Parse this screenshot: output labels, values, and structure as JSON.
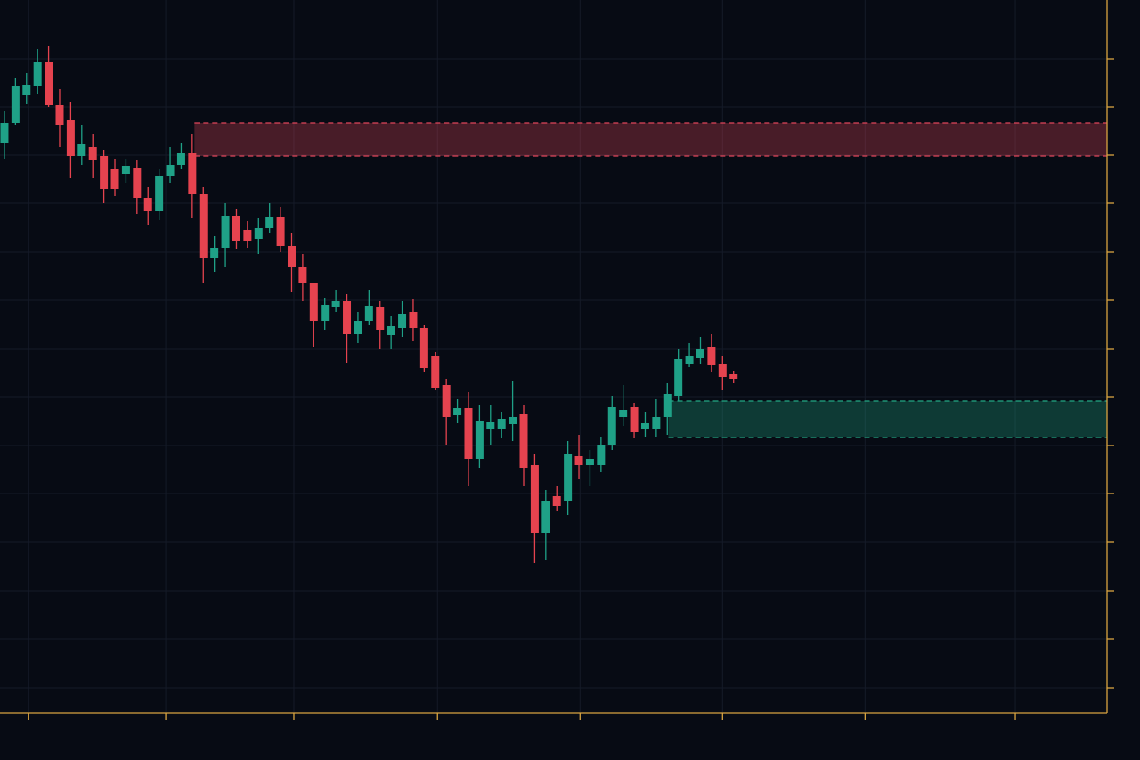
{
  "chart_data": {
    "type": "candlestick",
    "x": [
      0,
      1,
      2,
      3,
      4,
      5,
      6,
      7,
      8,
      9,
      10,
      11,
      12,
      13,
      14,
      15,
      16,
      17,
      18,
      19,
      20,
      21,
      22,
      23,
      24,
      25,
      26,
      27,
      28,
      29,
      30,
      31,
      32,
      33,
      34,
      35,
      36,
      37,
      38,
      39,
      40,
      41,
      42,
      43,
      44,
      45,
      46,
      47,
      48,
      49,
      50,
      51,
      52,
      53,
      54,
      55,
      56,
      57,
      58,
      59,
      60,
      61,
      62,
      63,
      64,
      65,
      66
    ],
    "open": [
      640,
      662,
      693,
      703,
      730,
      682,
      665,
      625,
      635,
      625,
      610,
      605,
      612,
      578,
      563,
      602,
      615,
      628,
      582,
      510,
      522,
      558,
      542,
      532,
      544,
      556,
      524,
      500,
      482,
      440,
      455,
      462,
      425,
      440,
      455,
      424,
      432,
      450,
      432,
      400,
      368,
      334,
      342,
      285,
      318,
      318,
      324,
      335,
      278,
      202,
      243,
      238,
      288,
      278,
      278,
      300,
      332,
      343,
      318,
      318,
      332,
      355,
      392,
      398,
      410,
      392,
      380
    ],
    "high": [
      675,
      712,
      718,
      745,
      748,
      700,
      685,
      660,
      650,
      632,
      622,
      622,
      620,
      590,
      610,
      635,
      640,
      650,
      590,
      535,
      572,
      565,
      552,
      555,
      572,
      568,
      538,
      515,
      482,
      465,
      475,
      470,
      450,
      474,
      462,
      445,
      462,
      464,
      435,
      405,
      375,
      352,
      360,
      345,
      345,
      338,
      372,
      345,
      290,
      250,
      255,
      305,
      312,
      295,
      310,
      355,
      368,
      348,
      338,
      352,
      370,
      408,
      415,
      422,
      425,
      400,
      384
    ],
    "low": [
      622,
      660,
      683,
      695,
      680,
      635,
      600,
      615,
      600,
      572,
      580,
      595,
      560,
      548,
      553,
      595,
      610,
      555,
      482,
      495,
      500,
      520,
      522,
      515,
      538,
      517,
      472,
      462,
      410,
      430,
      450,
      393,
      415,
      435,
      408,
      408,
      422,
      417,
      382,
      362,
      300,
      325,
      255,
      275,
      300,
      308,
      305,
      255,
      168,
      172,
      227,
      222,
      262,
      255,
      270,
      295,
      322,
      308,
      310,
      310,
      312,
      350,
      388,
      392,
      382,
      362,
      370
    ],
    "close": [
      662,
      703,
      705,
      730,
      682,
      660,
      625,
      638,
      620,
      588,
      588,
      614,
      578,
      563,
      602,
      615,
      628,
      582,
      510,
      522,
      558,
      530,
      530,
      544,
      556,
      524,
      500,
      482,
      440,
      458,
      462,
      425,
      440,
      457,
      430,
      434,
      448,
      432,
      387,
      365,
      332,
      342,
      285,
      328,
      326,
      330,
      332,
      275,
      202,
      238,
      232,
      290,
      278,
      285,
      300,
      343,
      340,
      315,
      325,
      332,
      358,
      397,
      400,
      408,
      390,
      377,
      375
    ],
    "up_color": "#1fa187",
    "down_color": "#e5434f",
    "xlim": [
      -0.4,
      99.8
    ],
    "xticks": [
      2.2,
      14.6,
      26.2,
      39.2,
      52.1,
      65,
      77.9,
      91.5
    ],
    "ylim": [
      0,
      800
    ],
    "yticks": [
      28,
      83,
      137,
      192,
      246,
      300,
      354,
      408,
      463,
      517,
      572,
      626,
      680,
      734
    ],
    "grid": true,
    "axis_color": "#d9a441",
    "zones": [
      {
        "ylim": [
          625,
          662
        ],
        "x_start": 17.2,
        "color": "#e0455a"
      },
      {
        "ylim": [
          309,
          350
        ],
        "x_start": 60.1,
        "color": "#22a884"
      }
    ]
  }
}
